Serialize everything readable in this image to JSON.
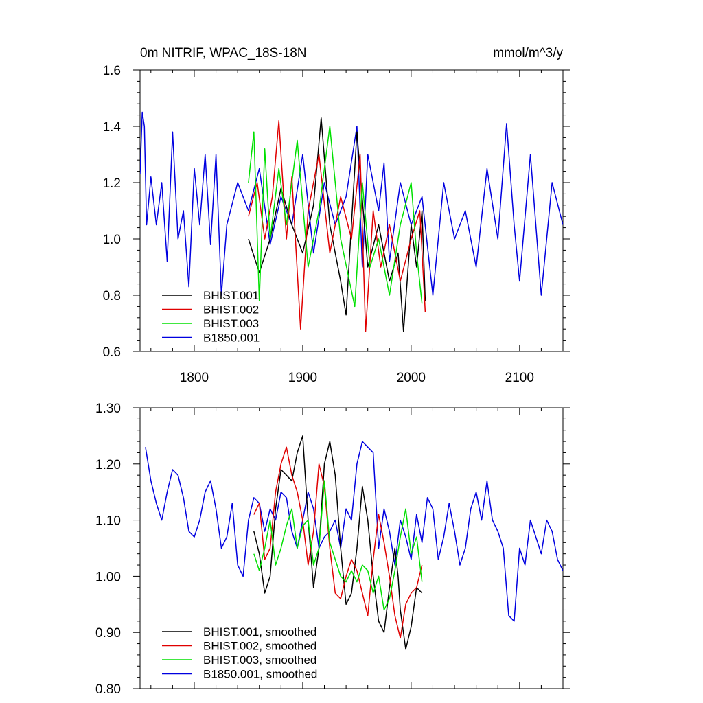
{
  "figure": {
    "title_left": "0m NITRIF, WPAC_18S-18N",
    "title_right": "mmol/m^3/y"
  },
  "colors": {
    "BHIST.001": "#000000",
    "BHIST.002": "#e00000",
    "BHIST.003": "#00e000",
    "B1850.001": "#0000e0"
  },
  "chart_data": [
    {
      "type": "line",
      "title": "0m NITRIF, WPAC_18S-18N",
      "units_label": "mmol/m^3/y",
      "xlabel": "",
      "ylabel": "",
      "xlim": [
        1750,
        2140
      ],
      "ylim": [
        0.6,
        1.6
      ],
      "x_ticks": [
        1800,
        1900,
        2000,
        2100
      ],
      "x_tick_labels": [
        "1800",
        "1900",
        "2000",
        "2100"
      ],
      "y_ticks": [
        0.6,
        0.8,
        1.0,
        1.2,
        1.4,
        1.6
      ],
      "y_tick_labels": [
        "0.6",
        "0.8",
        "1.0",
        "1.2",
        "1.4",
        "1.6"
      ],
      "grid": false,
      "legend_position": "bottom-left",
      "series": [
        {
          "name": "BHIST.001",
          "legend_label": "BHIST.001",
          "color_key": "BHIST.001",
          "x": [
            1850,
            1860,
            1870,
            1880,
            1890,
            1900,
            1910,
            1917,
            1925,
            1935,
            1940,
            1950,
            1960,
            1970,
            1980,
            1988,
            1993,
            2000,
            2005,
            2010,
            2013
          ],
          "y": [
            1.0,
            0.88,
            1.0,
            1.18,
            1.05,
            0.95,
            1.12,
            1.43,
            1.05,
            0.85,
            0.73,
            1.38,
            0.9,
            1.05,
            0.85,
            0.95,
            0.67,
            1.05,
            0.9,
            1.1,
            0.78
          ]
        },
        {
          "name": "BHIST.002",
          "legend_label": "BHIST.002",
          "color_key": "BHIST.002",
          "x": [
            1850,
            1858,
            1865,
            1872,
            1878,
            1885,
            1890,
            1898,
            1905,
            1915,
            1925,
            1935,
            1945,
            1953,
            1958,
            1965,
            1972,
            1980,
            1990,
            2000,
            2008,
            2013
          ],
          "y": [
            1.08,
            1.2,
            1.0,
            1.15,
            1.42,
            1.0,
            1.22,
            0.68,
            1.1,
            1.3,
            0.95,
            1.15,
            1.0,
            1.3,
            0.67,
            1.1,
            0.9,
            1.05,
            0.85,
            1.0,
            1.1,
            0.74
          ]
        },
        {
          "name": "BHIST.003",
          "legend_label": "BHIST.003",
          "color_key": "BHIST.003",
          "x": [
            1850,
            1855,
            1860,
            1865,
            1870,
            1878,
            1885,
            1895,
            1905,
            1915,
            1925,
            1935,
            1948,
            1955,
            1962,
            1970,
            1980,
            1990,
            2000,
            2005,
            2010
          ],
          "y": [
            1.2,
            1.38,
            0.78,
            1.32,
            1.0,
            1.25,
            1.05,
            1.35,
            0.9,
            1.1,
            1.4,
            1.0,
            0.76,
            1.2,
            0.9,
            1.0,
            0.8,
            1.05,
            1.2,
            0.95,
            0.77
          ]
        },
        {
          "name": "B1850.001",
          "legend_label": "B1850.001",
          "color_key": "B1850.001",
          "x": [
            1750,
            1752,
            1754,
            1756,
            1760,
            1765,
            1770,
            1775,
            1780,
            1785,
            1790,
            1795,
            1800,
            1805,
            1810,
            1815,
            1820,
            1825,
            1830,
            1840,
            1850,
            1860,
            1870,
            1880,
            1890,
            1900,
            1910,
            1920,
            1930,
            1940,
            1950,
            1955,
            1960,
            1970,
            1975,
            1980,
            1990,
            2000,
            2010,
            2020,
            2030,
            2040,
            2050,
            2060,
            2070,
            2080,
            2088,
            2095,
            2100,
            2110,
            2120,
            2130,
            2140
          ],
          "y": [
            1.23,
            1.45,
            1.4,
            1.05,
            1.22,
            1.05,
            1.2,
            0.92,
            1.38,
            1.0,
            1.1,
            0.83,
            1.25,
            1.05,
            1.3,
            0.98,
            1.3,
            0.8,
            1.05,
            1.2,
            1.1,
            1.25,
            0.98,
            1.15,
            1.05,
            1.3,
            0.95,
            1.2,
            1.05,
            1.15,
            1.4,
            0.9,
            1.3,
            1.1,
            1.27,
            0.92,
            1.2,
            1.05,
            1.15,
            0.8,
            1.2,
            1.0,
            1.1,
            0.9,
            1.25,
            1.0,
            1.41,
            1.05,
            0.85,
            1.3,
            0.8,
            1.2,
            1.05
          ]
        }
      ]
    },
    {
      "type": "line",
      "title": "",
      "xlabel": "",
      "ylabel": "",
      "xlim": [
        1750,
        2140
      ],
      "ylim": [
        0.8,
        1.3
      ],
      "x_ticks": [
        1800,
        1900,
        2000,
        2100
      ],
      "x_tick_labels": [],
      "y_ticks": [
        0.8,
        0.9,
        1.0,
        1.1,
        1.2,
        1.3
      ],
      "y_tick_labels": [
        "0.80",
        "0.90",
        "1.00",
        "1.10",
        "1.20",
        "1.30"
      ],
      "grid": false,
      "legend_position": "bottom-left",
      "series": [
        {
          "name": "BHIST.001, smoothed",
          "legend_label": "BHIST.001, smoothed",
          "color_key": "BHIST.001",
          "x": [
            1855,
            1860,
            1865,
            1870,
            1875,
            1880,
            1885,
            1890,
            1895,
            1900,
            1905,
            1910,
            1915,
            1920,
            1925,
            1930,
            1935,
            1940,
            1945,
            1950,
            1955,
            1960,
            1965,
            1970,
            1975,
            1980,
            1985,
            1988,
            1990,
            1995,
            2000,
            2005,
            2010
          ],
          "y": [
            1.08,
            1.04,
            0.97,
            1.0,
            1.12,
            1.19,
            1.18,
            1.17,
            1.22,
            1.25,
            1.1,
            0.98,
            1.05,
            1.2,
            1.24,
            1.18,
            1.05,
            0.95,
            0.97,
            1.05,
            1.16,
            1.1,
            1.0,
            0.92,
            0.9,
            0.98,
            1.05,
            1.0,
            0.94,
            0.87,
            0.91,
            0.98,
            0.97
          ]
        },
        {
          "name": "BHIST.002, smoothed",
          "legend_label": "BHIST.002, smoothed",
          "color_key": "BHIST.002",
          "x": [
            1855,
            1860,
            1865,
            1870,
            1875,
            1880,
            1885,
            1890,
            1895,
            1900,
            1905,
            1910,
            1915,
            1920,
            1925,
            1930,
            1935,
            1940,
            1945,
            1950,
            1955,
            1960,
            1965,
            1970,
            1975,
            1980,
            1985,
            1990,
            1995,
            2000,
            2005,
            2010
          ],
          "y": [
            1.11,
            1.13,
            1.03,
            1.05,
            1.15,
            1.2,
            1.23,
            1.18,
            1.15,
            1.1,
            1.02,
            1.08,
            1.2,
            1.16,
            1.05,
            0.97,
            0.96,
            1.0,
            1.03,
            1.01,
            0.97,
            0.93,
            1.03,
            1.11,
            1.06,
            1.0,
            0.93,
            0.89,
            0.95,
            0.97,
            0.98,
            1.02
          ]
        },
        {
          "name": "BHIST.003, smoothed",
          "legend_label": "BHIST.003, smoothed",
          "color_key": "BHIST.003",
          "x": [
            1855,
            1860,
            1865,
            1870,
            1875,
            1880,
            1885,
            1890,
            1895,
            1900,
            1905,
            1910,
            1915,
            1920,
            1925,
            1930,
            1935,
            1940,
            1945,
            1950,
            1955,
            1960,
            1965,
            1970,
            1975,
            1980,
            1985,
            1990,
            1995,
            2000,
            2005,
            2010
          ],
          "y": [
            1.04,
            1.01,
            1.05,
            1.1,
            1.02,
            1.05,
            1.09,
            1.12,
            1.05,
            1.09,
            1.1,
            1.02,
            1.05,
            1.17,
            1.06,
            1.03,
            1.0,
            0.99,
            1.01,
            0.99,
            1.02,
            1.01,
            0.97,
            1.0,
            0.94,
            0.96,
            1.01,
            1.07,
            1.12,
            1.04,
            1.07,
            0.99
          ]
        },
        {
          "name": "B1850.001, smoothed",
          "legend_label": "B1850.001, smoothed",
          "color_key": "B1850.001",
          "x": [
            1755,
            1760,
            1765,
            1770,
            1775,
            1780,
            1785,
            1790,
            1795,
            1800,
            1805,
            1810,
            1815,
            1820,
            1825,
            1830,
            1835,
            1840,
            1845,
            1850,
            1855,
            1860,
            1865,
            1870,
            1875,
            1880,
            1885,
            1890,
            1895,
            1900,
            1905,
            1910,
            1915,
            1920,
            1925,
            1930,
            1935,
            1940,
            1945,
            1950,
            1955,
            1960,
            1965,
            1970,
            1975,
            1980,
            1985,
            1990,
            1995,
            2000,
            2005,
            2010,
            2015,
            2020,
            2025,
            2030,
            2035,
            2040,
            2045,
            2050,
            2055,
            2060,
            2065,
            2070,
            2075,
            2080,
            2085,
            2090,
            2095,
            2100,
            2105,
            2110,
            2115,
            2120,
            2125,
            2130,
            2135,
            2140
          ],
          "y": [
            1.23,
            1.17,
            1.13,
            1.1,
            1.15,
            1.19,
            1.18,
            1.14,
            1.08,
            1.07,
            1.1,
            1.15,
            1.17,
            1.12,
            1.05,
            1.07,
            1.13,
            1.02,
            1.0,
            1.1,
            1.14,
            1.13,
            1.08,
            1.12,
            1.1,
            1.15,
            1.14,
            1.08,
            1.05,
            1.1,
            1.15,
            1.12,
            1.05,
            1.07,
            1.08,
            1.1,
            1.05,
            1.12,
            1.1,
            1.2,
            1.24,
            1.23,
            1.22,
            1.05,
            1.12,
            1.08,
            1.02,
            1.1,
            1.07,
            1.03,
            1.11,
            1.06,
            1.14,
            1.12,
            1.03,
            1.07,
            1.13,
            1.08,
            1.02,
            1.05,
            1.12,
            1.15,
            1.1,
            1.17,
            1.1,
            1.08,
            1.05,
            0.93,
            0.92,
            1.05,
            1.02,
            1.1,
            1.07,
            1.04,
            1.1,
            1.08,
            1.03,
            1.01
          ]
        }
      ]
    }
  ]
}
